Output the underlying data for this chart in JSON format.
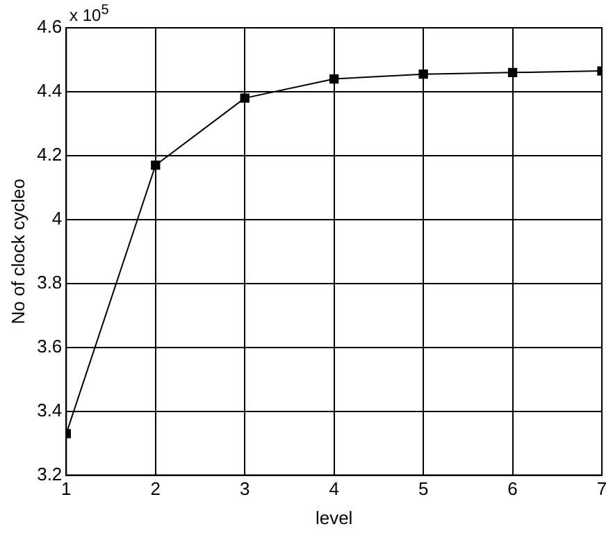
{
  "chart_data": {
    "type": "line",
    "xlabel": "level",
    "ylabel": "No of clock cycleo",
    "annotations": [
      "x 10$^{5}$"
    ],
    "x": [
      1,
      2,
      3,
      4,
      5,
      6,
      7
    ],
    "series": [
      {
        "color": "#000000",
        "values": [
          3.33,
          4.17,
          4.38,
          4.44,
          4.455,
          4.46,
          4.465
        ]
      }
    ],
    "xlim": [
      1,
      7
    ],
    "xticks": [
      1,
      2,
      3,
      4,
      5,
      6,
      7
    ],
    "ylim": [
      3.2,
      4.6
    ],
    "yticks": [
      3.2,
      3.4,
      3.6,
      3.8,
      4,
      4.2,
      4.4,
      4.6
    ],
    "grid": true,
    "legend": false,
    "marker": "square",
    "line_style": "solid"
  }
}
